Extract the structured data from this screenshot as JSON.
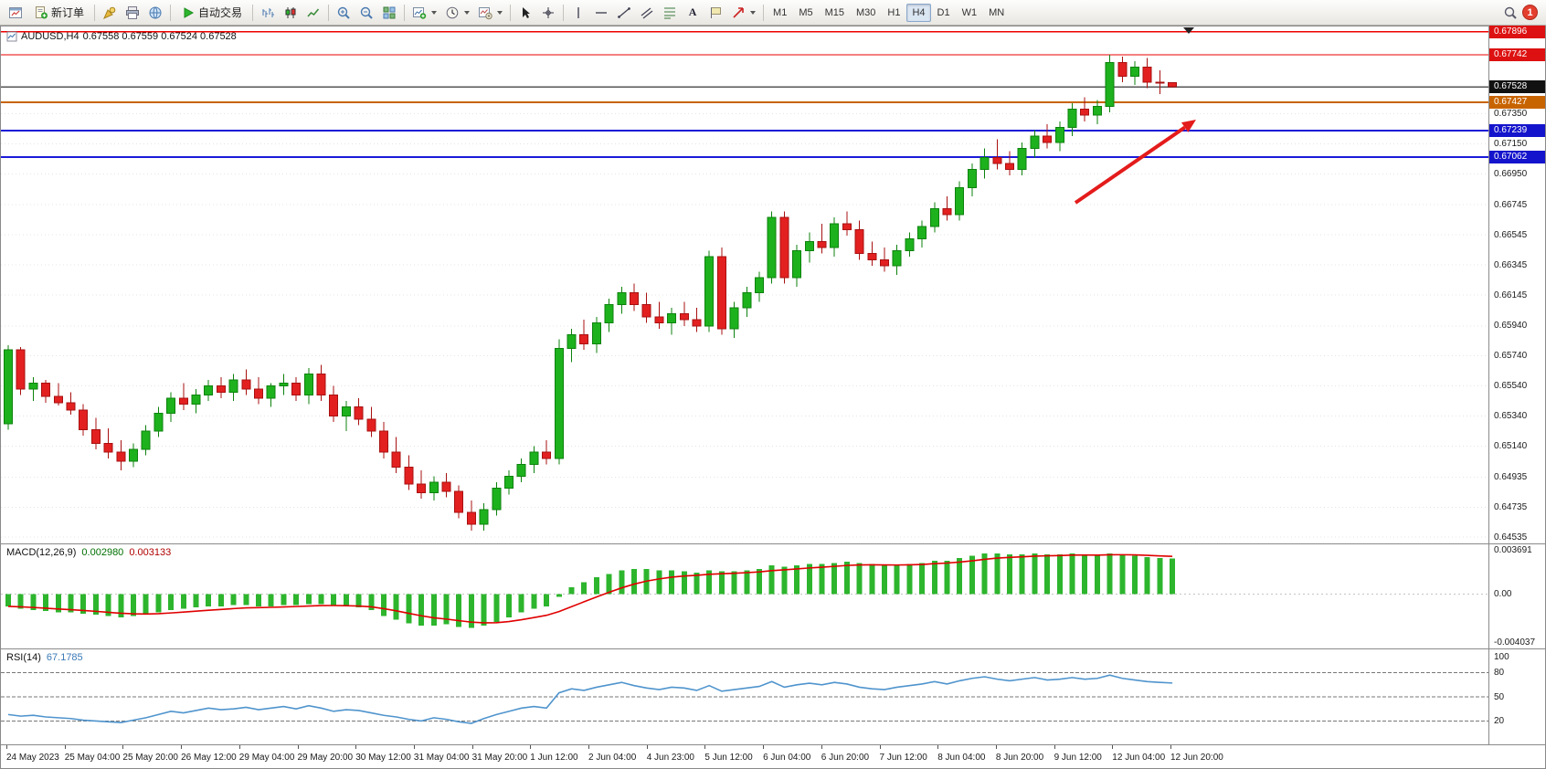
{
  "toolbar": {
    "new_order_label": "新订单",
    "autotrade_label": "自动交易",
    "timeframes": [
      "M1",
      "M5",
      "M15",
      "M30",
      "H1",
      "H4",
      "D1",
      "W1",
      "MN"
    ],
    "active_timeframe": "H4",
    "notification_count": "1"
  },
  "chart": {
    "symbol_period": "AUDUSD,H4",
    "ohlc_text": "0.67558 0.67559 0.67524 0.67528"
  },
  "indicators": {
    "macd_name": "MACD(12,26,9)",
    "macd_value": "0.002980",
    "macd_signal_value": "0.003133",
    "rsi_name": "RSI(14)",
    "rsi_value": "67.1785"
  },
  "chart_data": {
    "type": "candlestick",
    "symbol": "AUDUSD",
    "timeframe": "H4",
    "up_color": "#1db21d",
    "up_stroke": "#0d820d",
    "down_color": "#e32020",
    "down_stroke": "#a81010",
    "price_pane": {
      "ylim": [
        0.645,
        0.6793
      ],
      "grid_ticks": [
        "0.67350",
        "0.67150",
        "0.66950",
        "0.66745",
        "0.66545",
        "0.66345",
        "0.66145",
        "0.65940",
        "0.65740",
        "0.65540",
        "0.65340",
        "0.65140",
        "0.64935",
        "0.64735",
        "0.64535"
      ],
      "markers": [
        {
          "price": "0.67896",
          "bg": "#dd1111",
          "line_color": "#ee0000",
          "line_width": 1.4
        },
        {
          "price": "0.67742",
          "bg": "#dd1111",
          "line_color": "#ee0000",
          "line_width": 1.4
        },
        {
          "price": "0.67528",
          "bg": "#111111",
          "line_color": "#555555",
          "line_width": 1.2
        },
        {
          "price": "0.67427",
          "bg": "#c86400",
          "line_color": "#c86400",
          "line_width": 2
        },
        {
          "price": "0.67239",
          "bg": "#1414cc",
          "line_color": "#1a1ad8",
          "line_width": 2
        },
        {
          "price": "0.67062",
          "bg": "#1414cc",
          "line_color": "#1a1ad8",
          "line_width": 2
        }
      ]
    },
    "candles": [
      [
        0.6529,
        0.6581,
        0.6525,
        0.6578
      ],
      [
        0.6578,
        0.658,
        0.6548,
        0.6552
      ],
      [
        0.6552,
        0.656,
        0.6544,
        0.6556
      ],
      [
        0.6556,
        0.6558,
        0.6543,
        0.6547
      ],
      [
        0.6547,
        0.6556,
        0.6541,
        0.6543
      ],
      [
        0.6543,
        0.655,
        0.6535,
        0.6538
      ],
      [
        0.6538,
        0.6542,
        0.6521,
        0.6525
      ],
      [
        0.6525,
        0.6533,
        0.6512,
        0.6516
      ],
      [
        0.6516,
        0.6526,
        0.6506,
        0.651
      ],
      [
        0.651,
        0.6518,
        0.6498,
        0.6504
      ],
      [
        0.6504,
        0.6516,
        0.65,
        0.6512
      ],
      [
        0.6512,
        0.6528,
        0.6508,
        0.6524
      ],
      [
        0.6524,
        0.654,
        0.652,
        0.6536
      ],
      [
        0.6536,
        0.655,
        0.653,
        0.6546
      ],
      [
        0.6546,
        0.6556,
        0.6538,
        0.6542
      ],
      [
        0.6542,
        0.6552,
        0.6536,
        0.6548
      ],
      [
        0.6548,
        0.6558,
        0.6544,
        0.6554
      ],
      [
        0.6554,
        0.656,
        0.6546,
        0.655
      ],
      [
        0.655,
        0.6562,
        0.6544,
        0.6558
      ],
      [
        0.6558,
        0.6565,
        0.6548,
        0.6552
      ],
      [
        0.6552,
        0.656,
        0.6542,
        0.6546
      ],
      [
        0.6546,
        0.6556,
        0.654,
        0.6554
      ],
      [
        0.6554,
        0.6562,
        0.6548,
        0.6556
      ],
      [
        0.6556,
        0.656,
        0.6544,
        0.6548
      ],
      [
        0.6548,
        0.6566,
        0.6542,
        0.6562
      ],
      [
        0.6562,
        0.6568,
        0.6544,
        0.6548
      ],
      [
        0.6548,
        0.6554,
        0.653,
        0.6534
      ],
      [
        0.6534,
        0.6544,
        0.6524,
        0.654
      ],
      [
        0.654,
        0.6546,
        0.6528,
        0.6532
      ],
      [
        0.6532,
        0.654,
        0.652,
        0.6524
      ],
      [
        0.6524,
        0.653,
        0.6506,
        0.651
      ],
      [
        0.651,
        0.652,
        0.6496,
        0.65
      ],
      [
        0.65,
        0.6508,
        0.6485,
        0.6489
      ],
      [
        0.6489,
        0.6498,
        0.6479,
        0.6483
      ],
      [
        0.6483,
        0.6494,
        0.6478,
        0.649
      ],
      [
        0.649,
        0.6496,
        0.648,
        0.6484
      ],
      [
        0.6484,
        0.6488,
        0.6466,
        0.647
      ],
      [
        0.647,
        0.6478,
        0.6458,
        0.6462
      ],
      [
        0.6462,
        0.6476,
        0.6458,
        0.6472
      ],
      [
        0.6472,
        0.649,
        0.6468,
        0.6486
      ],
      [
        0.6486,
        0.6498,
        0.6482,
        0.6494
      ],
      [
        0.6494,
        0.6506,
        0.649,
        0.6502
      ],
      [
        0.6502,
        0.6514,
        0.6496,
        0.651
      ],
      [
        0.651,
        0.6518,
        0.6502,
        0.6506
      ],
      [
        0.6506,
        0.6585,
        0.6502,
        0.6579
      ],
      [
        0.6579,
        0.6592,
        0.657,
        0.6588
      ],
      [
        0.6588,
        0.6598,
        0.6578,
        0.6582
      ],
      [
        0.6582,
        0.66,
        0.6576,
        0.6596
      ],
      [
        0.6596,
        0.6612,
        0.659,
        0.6608
      ],
      [
        0.6608,
        0.662,
        0.6602,
        0.6616
      ],
      [
        0.6616,
        0.6622,
        0.6604,
        0.6608
      ],
      [
        0.6608,
        0.6616,
        0.6596,
        0.66
      ],
      [
        0.66,
        0.661,
        0.6592,
        0.6596
      ],
      [
        0.6596,
        0.6606,
        0.6588,
        0.6602
      ],
      [
        0.6602,
        0.661,
        0.6594,
        0.6598
      ],
      [
        0.6598,
        0.6606,
        0.659,
        0.6594
      ],
      [
        0.6594,
        0.6644,
        0.659,
        0.664
      ],
      [
        0.664,
        0.6646,
        0.6588,
        0.6592
      ],
      [
        0.6592,
        0.661,
        0.6586,
        0.6606
      ],
      [
        0.6606,
        0.662,
        0.66,
        0.6616
      ],
      [
        0.6616,
        0.663,
        0.661,
        0.6626
      ],
      [
        0.6626,
        0.667,
        0.6622,
        0.6666
      ],
      [
        0.6666,
        0.667,
        0.6622,
        0.6626
      ],
      [
        0.6626,
        0.6648,
        0.662,
        0.6644
      ],
      [
        0.6644,
        0.6656,
        0.6636,
        0.665
      ],
      [
        0.665,
        0.6662,
        0.6642,
        0.6646
      ],
      [
        0.6646,
        0.6666,
        0.664,
        0.6662
      ],
      [
        0.6662,
        0.667,
        0.6654,
        0.6658
      ],
      [
        0.6658,
        0.6664,
        0.6638,
        0.6642
      ],
      [
        0.6642,
        0.665,
        0.6634,
        0.6638
      ],
      [
        0.6638,
        0.6646,
        0.663,
        0.6634
      ],
      [
        0.6634,
        0.6648,
        0.6628,
        0.6644
      ],
      [
        0.6644,
        0.6656,
        0.664,
        0.6652
      ],
      [
        0.6652,
        0.6664,
        0.6646,
        0.666
      ],
      [
        0.666,
        0.6676,
        0.6656,
        0.6672
      ],
      [
        0.6672,
        0.668,
        0.6664,
        0.6668
      ],
      [
        0.6668,
        0.669,
        0.6664,
        0.6686
      ],
      [
        0.6686,
        0.6702,
        0.668,
        0.6698
      ],
      [
        0.6698,
        0.6712,
        0.6692,
        0.6706
      ],
      [
        0.6706,
        0.6718,
        0.6698,
        0.6702
      ],
      [
        0.6702,
        0.671,
        0.6694,
        0.6698
      ],
      [
        0.6698,
        0.6716,
        0.6694,
        0.6712
      ],
      [
        0.6712,
        0.6724,
        0.6706,
        0.672
      ],
      [
        0.672,
        0.6728,
        0.6712,
        0.6716
      ],
      [
        0.6716,
        0.673,
        0.671,
        0.6726
      ],
      [
        0.6726,
        0.6742,
        0.672,
        0.6738
      ],
      [
        0.6738,
        0.6746,
        0.673,
        0.6734
      ],
      [
        0.6734,
        0.6744,
        0.6728,
        0.674
      ],
      [
        0.674,
        0.67742,
        0.6736,
        0.6769
      ],
      [
        0.6769,
        0.6773,
        0.6756,
        0.676
      ],
      [
        0.676,
        0.677,
        0.6754,
        0.6766
      ],
      [
        0.6766,
        0.6772,
        0.6752,
        0.6756
      ],
      [
        0.6756,
        0.6764,
        0.6748,
        0.67558
      ],
      [
        0.67558,
        0.67559,
        0.67524,
        0.67528
      ]
    ],
    "time_labels": [
      "24 May 2023",
      "25 May 04:00",
      "25 May 20:00",
      "26 May 12:00",
      "29 May 04:00",
      "29 May 20:00",
      "30 May 12:00",
      "31 May 04:00",
      "31 May 20:00",
      "1 Jun 12:00",
      "2 Jun 04:00",
      "4 Jun 23:00",
      "5 Jun 12:00",
      "6 Jun 04:00",
      "6 Jun 20:00",
      "7 Jun 12:00",
      "8 Jun 04:00",
      "8 Jun 20:00",
      "9 Jun 12:00",
      "12 Jun 04:00",
      "12 Jun 20:00"
    ],
    "macd": {
      "params": "12,26,9",
      "histogram_color": "#2db52d",
      "signal_color": "#e00000",
      "ylim": [
        -0.004492,
        0.004146
      ],
      "axis_labels": [
        "0.003691",
        "0.00",
        "-0.004037"
      ],
      "values": [
        -0.001,
        -0.0012,
        -0.0013,
        -0.0014,
        -0.0015,
        -0.0015,
        -0.0016,
        -0.0017,
        -0.0018,
        -0.0019,
        -0.0018,
        -0.0017,
        -0.0015,
        -0.0013,
        -0.0012,
        -0.0011,
        -0.001,
        -0.001,
        -0.0009,
        -0.0009,
        -0.001,
        -0.001,
        -0.0009,
        -0.0009,
        -0.0008,
        -0.0008,
        -0.0009,
        -0.001,
        -0.0011,
        -0.0013,
        -0.0018,
        -0.0021,
        -0.0024,
        -0.0026,
        -0.0026,
        -0.0025,
        -0.0027,
        -0.0028,
        -0.0026,
        -0.0023,
        -0.0019,
        -0.0015,
        -0.0012,
        -0.001,
        -0.0002,
        0.0006,
        0.001,
        0.0014,
        0.0017,
        0.002,
        0.0021,
        0.0021,
        0.002,
        0.002,
        0.0019,
        0.0018,
        0.002,
        0.0019,
        0.0019,
        0.002,
        0.0021,
        0.0024,
        0.0023,
        0.0024,
        0.0025,
        0.0025,
        0.0026,
        0.0027,
        0.0026,
        0.0025,
        0.0024,
        0.0024,
        0.0025,
        0.0026,
        0.0028,
        0.0028,
        0.003,
        0.0032,
        0.0034,
        0.0034,
        0.0033,
        0.0033,
        0.0034,
        0.0033,
        0.0033,
        0.0034,
        0.0033,
        0.0032,
        0.0034,
        0.0033,
        0.0032,
        0.0031,
        0.003,
        0.00298
      ]
    },
    "rsi": {
      "period": 14,
      "line_color": "#4f94cd",
      "ylim": [
        -9.1,
        109.1
      ],
      "levels": [
        80,
        50,
        20
      ],
      "axis_labels": [
        "100",
        "80",
        "50",
        "20"
      ],
      "axis_label_values": [
        100,
        80,
        50,
        20
      ],
      "values": [
        28,
        26,
        27,
        25,
        24,
        23,
        21,
        20,
        19,
        18,
        21,
        24,
        28,
        32,
        30,
        33,
        36,
        34,
        35,
        37,
        34,
        36,
        38,
        35,
        39,
        36,
        32,
        34,
        33,
        30,
        27,
        25,
        22,
        20,
        24,
        22,
        19,
        17,
        23,
        28,
        32,
        36,
        38,
        36,
        55,
        60,
        58,
        62,
        65,
        68,
        64,
        61,
        59,
        62,
        61,
        58,
        64,
        57,
        59,
        61,
        63,
        69,
        62,
        65,
        67,
        65,
        68,
        66,
        62,
        60,
        59,
        62,
        64,
        66,
        69,
        66,
        70,
        73,
        75,
        72,
        70,
        72,
        74,
        71,
        72,
        74,
        72,
        73,
        77,
        73,
        71,
        69,
        68,
        67.18
      ]
    },
    "annotations": [
      {
        "type": "arrow",
        "from": [
          1176,
          193
        ],
        "to": [
          1308,
          102
        ],
        "color": "#e41b1b",
        "width": 4
      }
    ]
  }
}
